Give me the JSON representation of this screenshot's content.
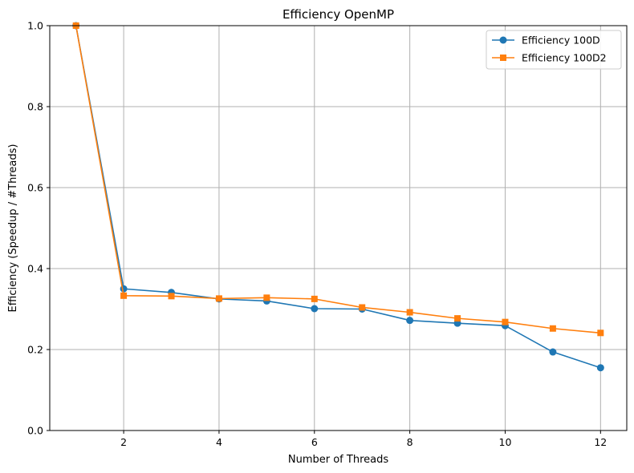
{
  "chart_data": {
    "type": "line",
    "title": "Efficiency OpenMP",
    "xlabel": "Number of Threads",
    "ylabel": "Efficiency (Speedup / #Threads)",
    "xlim": [
      0.45,
      12.55
    ],
    "ylim": [
      0,
      1.0
    ],
    "xticks": [
      2,
      4,
      6,
      8,
      10,
      12
    ],
    "yticks": [
      0.0,
      0.2,
      0.4,
      0.6,
      0.8,
      1.0
    ],
    "xtick_labels": [
      "2",
      "4",
      "6",
      "8",
      "10",
      "12"
    ],
    "ytick_labels": [
      "0.0",
      "0.2",
      "0.4",
      "0.6",
      "0.8",
      "1.0"
    ],
    "grid": true,
    "legend_position": "top-right",
    "x": [
      1,
      2,
      3,
      4,
      5,
      6,
      7,
      8,
      9,
      10,
      11,
      12
    ],
    "series": [
      {
        "name": "Efficiency 100D",
        "color": "#1f77b4",
        "marker": "circle",
        "values": [
          1.0,
          0.35,
          0.341,
          0.325,
          0.32,
          0.301,
          0.3,
          0.272,
          0.265,
          0.259,
          0.194,
          0.155
        ]
      },
      {
        "name": "Efficiency 100D2",
        "color": "#ff7f0e",
        "marker": "square",
        "values": [
          1.0,
          0.333,
          0.332,
          0.326,
          0.328,
          0.325,
          0.304,
          0.292,
          0.277,
          0.268,
          0.252,
          0.241
        ]
      }
    ]
  }
}
